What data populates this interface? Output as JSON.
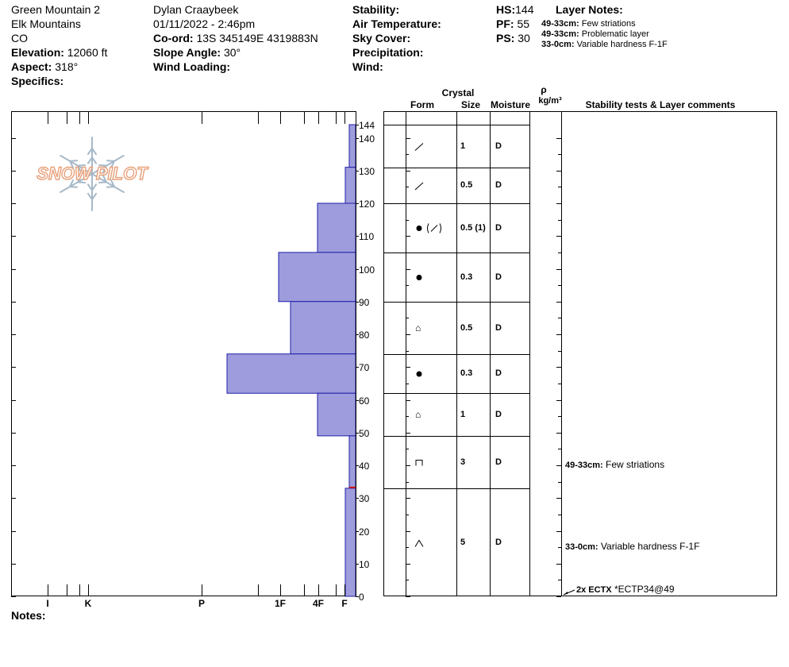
{
  "site": {
    "name": "Green Mountain 2",
    "range": "Elk Mountains",
    "state": "CO",
    "elevation_label": "Elevation:",
    "elevation": "12060 ft",
    "aspect_label": "Aspect:",
    "aspect": "318°",
    "specifics_label": "Specifics:"
  },
  "observer": {
    "name": "Dylan Craaybeek",
    "datetime": "01/11/2022 - 2:46pm",
    "coord_label": "Co-ord:",
    "coord": "13S 345149E 4319883N",
    "slope_label": "Slope Angle:",
    "slope": "30°",
    "wind_loading_label": "Wind Loading:"
  },
  "conditions": {
    "stability_label": "Stability:",
    "air_temp_label": "Air Temperature:",
    "sky_cover_label": "Sky Cover:",
    "precip_label": "Precipitation:",
    "wind_label": "Wind:"
  },
  "depths": {
    "hs_label": "HS:",
    "hs": "144",
    "pf_label": "PF:",
    "pf": "55",
    "ps_label": "PS:",
    "ps": "30"
  },
  "layer_notes": {
    "title": "Layer Notes:",
    "items": [
      {
        "range": "49-33cm:",
        "text": "Few striations"
      },
      {
        "range": "49-33cm:",
        "text": "Problematic layer"
      },
      {
        "range": "33-0cm:",
        "text": "Variable hardness F-1F"
      }
    ]
  },
  "logo": {
    "text": "SNOW PILOT"
  },
  "table_headers": {
    "crystal": "Crystal",
    "form": "Form",
    "size": "Size",
    "moisture": "Moisture",
    "rho": "ρ",
    "density_unit": "kg/m³",
    "stability": "Stability tests & Layer comments"
  },
  "notes_label": "Notes:",
  "colors": {
    "layer_fill": "#9e9cdc",
    "layer_stroke": "#1f1fa8",
    "ptest_marker": "#d01010",
    "logo_orange": "#e8a07a",
    "logo_blue": "#a7b9c9"
  },
  "icons": [
    "decomposing-icon",
    "rounded-grain-icon",
    "mixed-form-icon",
    "cup-crystal-icon",
    "depth-hoar-icon"
  ],
  "chart_data": {
    "type": "snow-profile",
    "y_axis": {
      "min": 0,
      "max": 144,
      "ticks": [
        0,
        10,
        20,
        30,
        40,
        50,
        60,
        70,
        80,
        90,
        100,
        110,
        120,
        130,
        140,
        144
      ]
    },
    "hardness_axis": {
      "labels": [
        "I",
        "K",
        "P",
        "1F",
        "4F",
        "F"
      ]
    },
    "hardness_profile": [
      {
        "top": 144,
        "bottom": 131,
        "hardness": "F-"
      },
      {
        "top": 131,
        "bottom": 120,
        "hardness": "F"
      },
      {
        "top": 120,
        "bottom": 105,
        "hardness": "4F"
      },
      {
        "top": 105,
        "bottom": 90,
        "hardness": "1F"
      },
      {
        "top": 90,
        "bottom": 74,
        "hardness": "4F+"
      },
      {
        "top": 74,
        "bottom": 62,
        "hardness": "P"
      },
      {
        "top": 62,
        "bottom": 49,
        "hardness": "4F"
      },
      {
        "top": 49,
        "bottom": 33,
        "hardness": "F+"
      },
      {
        "top": 33,
        "bottom": 0,
        "hardness": "F"
      }
    ],
    "layers": [
      {
        "top": 144,
        "bottom": 131,
        "form": "decomposing-icon",
        "form_text": "",
        "size": "1",
        "moisture": "D"
      },
      {
        "top": 131,
        "bottom": 120,
        "form": "decomposing-icon",
        "form_text": "",
        "size": "0.5",
        "moisture": "D"
      },
      {
        "top": 120,
        "bottom": 105,
        "form": "mixed-form-icon",
        "form_text": "",
        "size": "0.5 (1)",
        "moisture": "D"
      },
      {
        "top": 105,
        "bottom": 90,
        "form": "rounded-grain-icon",
        "form_text": "",
        "size": "0.3",
        "moisture": "D"
      },
      {
        "top": 90,
        "bottom": 74,
        "form": "text",
        "form_text": "⌂",
        "size": "0.5",
        "moisture": "D"
      },
      {
        "top": 74,
        "bottom": 62,
        "form": "rounded-grain-icon",
        "form_text": "",
        "size": "0.3",
        "moisture": "D"
      },
      {
        "top": 62,
        "bottom": 49,
        "form": "text",
        "form_text": "⌂",
        "size": "1",
        "moisture": "D"
      },
      {
        "top": 49,
        "bottom": 33,
        "form": "cup-crystal-icon",
        "form_text": "",
        "size": "3",
        "moisture": "D"
      },
      {
        "top": 33,
        "bottom": 0,
        "form": "depth-hoar-icon",
        "form_text": "",
        "size": "5",
        "moisture": "D"
      }
    ],
    "comments": [
      {
        "depth": 40,
        "range": "49-33cm:",
        "text": "Few striations"
      },
      {
        "depth": 15,
        "range": "33-0cm:",
        "text": "Variable hardness F-1F"
      }
    ],
    "tests": [
      {
        "depth": 0,
        "label": "2x ECTX",
        "result": "*ECTP34@49"
      }
    ],
    "ptest_marker_depth": 33
  }
}
